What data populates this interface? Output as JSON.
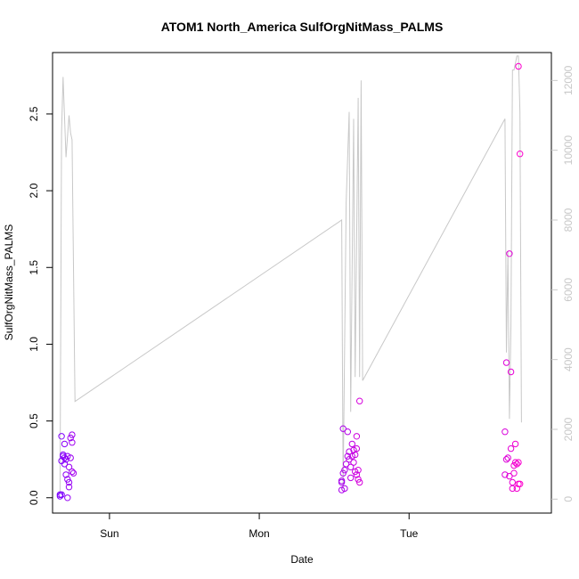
{
  "chart_data": {
    "type": "scatter",
    "title": "ATOM1 North_America SulfOrgNitMass_PALMS",
    "xlabel": "Date",
    "ylabel": "SulfOrgNitMass_PALMS",
    "x_ticks": [
      "Sun",
      "Mon",
      "Tue"
    ],
    "y_ticks": [
      "0.0",
      "0.5",
      "1.0",
      "1.5",
      "2.0",
      "2.5"
    ],
    "y2_ticks": [
      "0",
      "2000",
      "4000",
      "6000",
      "8000",
      "10000",
      "12000"
    ],
    "ylim": [
      -0.1,
      2.9
    ],
    "y2lim": [
      -400,
      12800
    ],
    "line_color": "#c8c8c8",
    "point_colors": [
      "#7a00ff",
      "#ff00cc"
    ],
    "xlim": [
      -0.38,
      2.95
    ],
    "x_unit": "days from Sun",
    "scatter": [
      {
        "x": -0.33,
        "y": 0.02
      },
      {
        "x": -0.33,
        "y": 0.01
      },
      {
        "x": -0.32,
        "y": 0.02
      },
      {
        "x": -0.32,
        "y": 0.4
      },
      {
        "x": -0.32,
        "y": 0.24
      },
      {
        "x": -0.31,
        "y": 0.27
      },
      {
        "x": -0.31,
        "y": 0.28
      },
      {
        "x": -0.3,
        "y": 0.22
      },
      {
        "x": -0.3,
        "y": 0.26
      },
      {
        "x": -0.3,
        "y": 0.35
      },
      {
        "x": -0.29,
        "y": 0.25
      },
      {
        "x": -0.29,
        "y": 0.15
      },
      {
        "x": -0.28,
        "y": 0.27
      },
      {
        "x": -0.28,
        "y": 0.12
      },
      {
        "x": -0.28,
        "y": 0.0
      },
      {
        "x": -0.27,
        "y": 0.1
      },
      {
        "x": -0.27,
        "y": 0.07
      },
      {
        "x": -0.27,
        "y": 0.2
      },
      {
        "x": -0.26,
        "y": 0.26
      },
      {
        "x": -0.26,
        "y": 0.39
      },
      {
        "x": -0.25,
        "y": 0.41
      },
      {
        "x": -0.25,
        "y": 0.36
      },
      {
        "x": -0.25,
        "y": 0.17
      },
      {
        "x": -0.24,
        "y": 0.16
      },
      {
        "x": 1.55,
        "y": 0.1
      },
      {
        "x": 1.55,
        "y": 0.11
      },
      {
        "x": 1.55,
        "y": 0.05
      },
      {
        "x": 1.56,
        "y": 0.45
      },
      {
        "x": 1.56,
        "y": 0.16
      },
      {
        "x": 1.57,
        "y": 0.18
      },
      {
        "x": 1.57,
        "y": 0.06
      },
      {
        "x": 1.58,
        "y": 0.22
      },
      {
        "x": 1.59,
        "y": 0.27
      },
      {
        "x": 1.59,
        "y": 0.43
      },
      {
        "x": 1.6,
        "y": 0.3
      },
      {
        "x": 1.6,
        "y": 0.25
      },
      {
        "x": 1.61,
        "y": 0.2
      },
      {
        "x": 1.61,
        "y": 0.13
      },
      {
        "x": 1.62,
        "y": 0.35
      },
      {
        "x": 1.62,
        "y": 0.27
      },
      {
        "x": 1.63,
        "y": 0.31
      },
      {
        "x": 1.63,
        "y": 0.23
      },
      {
        "x": 1.64,
        "y": 0.28
      },
      {
        "x": 1.64,
        "y": 0.17
      },
      {
        "x": 1.65,
        "y": 0.32
      },
      {
        "x": 1.65,
        "y": 0.4
      },
      {
        "x": 1.65,
        "y": 0.15
      },
      {
        "x": 1.66,
        "y": 0.18
      },
      {
        "x": 1.66,
        "y": 0.12
      },
      {
        "x": 1.67,
        "y": 0.1
      },
      {
        "x": 1.67,
        "y": 0.63
      },
      {
        "x": 2.64,
        "y": 0.43
      },
      {
        "x": 2.64,
        "y": 0.15
      },
      {
        "x": 2.65,
        "y": 0.25
      },
      {
        "x": 2.65,
        "y": 0.88
      },
      {
        "x": 2.66,
        "y": 0.26
      },
      {
        "x": 2.67,
        "y": 1.59
      },
      {
        "x": 2.67,
        "y": 0.14
      },
      {
        "x": 2.68,
        "y": 0.32
      },
      {
        "x": 2.68,
        "y": 0.82
      },
      {
        "x": 2.69,
        "y": 0.1
      },
      {
        "x": 2.69,
        "y": 0.06
      },
      {
        "x": 2.7,
        "y": 0.16
      },
      {
        "x": 2.7,
        "y": 0.21
      },
      {
        "x": 2.71,
        "y": 0.35
      },
      {
        "x": 2.71,
        "y": 0.23
      },
      {
        "x": 2.72,
        "y": 0.22
      },
      {
        "x": 2.72,
        "y": 0.06
      },
      {
        "x": 2.73,
        "y": 0.23
      },
      {
        "x": 2.73,
        "y": 0.09
      },
      {
        "x": 2.73,
        "y": 2.81
      },
      {
        "x": 2.74,
        "y": 2.24
      },
      {
        "x": 2.74,
        "y": 0.09
      }
    ],
    "line": [
      {
        "x": -0.33,
        "y": 200
      },
      {
        "x": -0.32,
        "y": 10500
      },
      {
        "x": -0.31,
        "y": 12100
      },
      {
        "x": -0.29,
        "y": 9800
      },
      {
        "x": -0.27,
        "y": 11000
      },
      {
        "x": -0.26,
        "y": 10500
      },
      {
        "x": -0.25,
        "y": 10300
      },
      {
        "x": -0.23,
        "y": 2800
      },
      {
        "x": 1.55,
        "y": 8000
      },
      {
        "x": 1.56,
        "y": 300
      },
      {
        "x": 1.58,
        "y": 8500
      },
      {
        "x": 1.6,
        "y": 11100
      },
      {
        "x": 1.61,
        "y": 2500
      },
      {
        "x": 1.63,
        "y": 10900
      },
      {
        "x": 1.64,
        "y": 3500
      },
      {
        "x": 1.66,
        "y": 11500
      },
      {
        "x": 1.67,
        "y": 3500
      },
      {
        "x": 1.68,
        "y": 12000
      },
      {
        "x": 1.69,
        "y": 3400
      },
      {
        "x": 2.64,
        "y": 10900
      },
      {
        "x": 2.65,
        "y": 4200
      },
      {
        "x": 2.66,
        "y": 7100
      },
      {
        "x": 2.67,
        "y": 2300
      },
      {
        "x": 2.68,
        "y": 5000
      },
      {
        "x": 2.69,
        "y": 12300
      },
      {
        "x": 2.7,
        "y": 12300
      },
      {
        "x": 2.72,
        "y": 12700
      },
      {
        "x": 2.73,
        "y": 12700
      },
      {
        "x": 2.74,
        "y": 11100
      },
      {
        "x": 2.75,
        "y": 2200
      }
    ]
  }
}
